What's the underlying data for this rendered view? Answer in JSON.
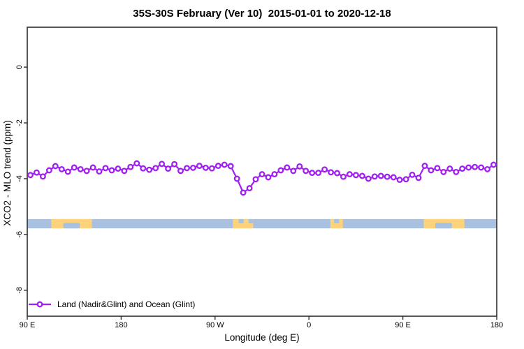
{
  "chart_data": {
    "type": "line",
    "title": "35S-30S February (Ver 10)  2015-01-01 to 2020-12-18",
    "xlabel": "Longitude (deg E)",
    "ylabel": "XCO2 - MLO trend (ppm)",
    "x_axis_note": "longitude wraps eastward: 90E to 180 to 90W to 0 to 90E to 180",
    "xlim": [
      90,
      540
    ],
    "ylim": [
      -8.93,
      1.43
    ],
    "grid": false,
    "x_ticks": [
      {
        "value": 90,
        "label": "90 E"
      },
      {
        "value": 180,
        "label": "180"
      },
      {
        "value": 270,
        "label": "90 W"
      },
      {
        "value": 360,
        "label": "0"
      },
      {
        "value": 450,
        "label": "90 E"
      },
      {
        "value": 540,
        "label": "180"
      }
    ],
    "y_ticks": [
      {
        "value": 0,
        "label": "0"
      },
      {
        "value": -2,
        "label": "-2"
      },
      {
        "value": -4,
        "label": "-4"
      },
      {
        "value": -6,
        "label": "-6"
      },
      {
        "value": -8,
        "label": "-8"
      }
    ],
    "series": [
      {
        "name": "Land (Nadir&Glint) and Ocean (Glint)",
        "color": "#A020F0",
        "marker": "open-circle",
        "x": [
          93,
          99,
          105,
          111,
          117,
          123,
          129,
          135,
          141,
          147,
          153,
          159,
          165,
          171,
          177,
          183,
          189,
          195,
          201,
          207,
          213,
          219,
          225,
          231,
          237,
          243,
          249,
          255,
          261,
          267,
          273,
          279,
          285,
          291,
          297,
          303,
          309,
          315,
          321,
          327,
          333,
          339,
          345,
          351,
          357,
          363,
          369,
          375,
          381,
          387,
          393,
          399,
          405,
          411,
          417,
          423,
          429,
          435,
          441,
          447,
          453,
          459,
          465,
          471,
          477,
          483,
          489,
          495,
          501,
          507,
          513,
          519,
          525,
          531,
          537
        ],
        "values": [
          -3.87,
          -3.78,
          -3.92,
          -3.7,
          -3.55,
          -3.66,
          -3.75,
          -3.6,
          -3.66,
          -3.72,
          -3.6,
          -3.74,
          -3.62,
          -3.7,
          -3.64,
          -3.72,
          -3.58,
          -3.45,
          -3.63,
          -3.68,
          -3.62,
          -3.47,
          -3.64,
          -3.48,
          -3.72,
          -3.62,
          -3.61,
          -3.54,
          -3.61,
          -3.63,
          -3.54,
          -3.5,
          -3.55,
          -4.0,
          -4.5,
          -4.34,
          -4.02,
          -3.84,
          -3.95,
          -3.84,
          -3.7,
          -3.6,
          -3.72,
          -3.56,
          -3.72,
          -3.79,
          -3.79,
          -3.67,
          -3.77,
          -3.8,
          -3.93,
          -3.84,
          -3.87,
          -3.9,
          -4.0,
          -3.92,
          -3.9,
          -3.93,
          -3.95,
          -4.04,
          -4.02,
          -3.86,
          -3.97,
          -3.54,
          -3.7,
          -3.62,
          -3.76,
          -3.64,
          -3.76,
          -3.64,
          -3.6,
          -3.58,
          -3.6,
          -3.66,
          -3.5
        ]
      }
    ],
    "surface_band": {
      "description": "land/ocean surface-type strip for latitude band 35S-30S",
      "value_top": -5.45,
      "value_bottom": -5.78,
      "ocean_color": "#A9C0DE",
      "land_color": "#FCD27C",
      "land_segments_lon": [
        [
          113,
          152
        ],
        [
          287,
          306.5
        ],
        [
          380.5,
          392.5
        ],
        [
          470,
          509
        ]
      ],
      "ocean_notches": [
        {
          "lon": [
            124.5,
            140.5
          ],
          "side": "bottom",
          "frac": 0.6
        },
        {
          "lon": [
            481,
            497
          ],
          "side": "bottom",
          "frac": 0.6
        },
        {
          "lon": [
            292.5,
            297.5
          ],
          "side": "top",
          "frac": 0.45
        },
        {
          "lon": [
            302,
            306.5
          ],
          "side": "top",
          "frac": 0.45
        },
        {
          "lon": [
            384,
            389
          ],
          "side": "top",
          "frac": 0.45
        }
      ]
    },
    "legend": {
      "label": "Land (Nadir&Glint) and Ocean (Glint)",
      "position": "bottom-left"
    },
    "colors": {
      "series": "#A020F0",
      "axis": "#2e2e2e",
      "ocean": "#A9C0DE",
      "land": "#FCD27C"
    }
  }
}
